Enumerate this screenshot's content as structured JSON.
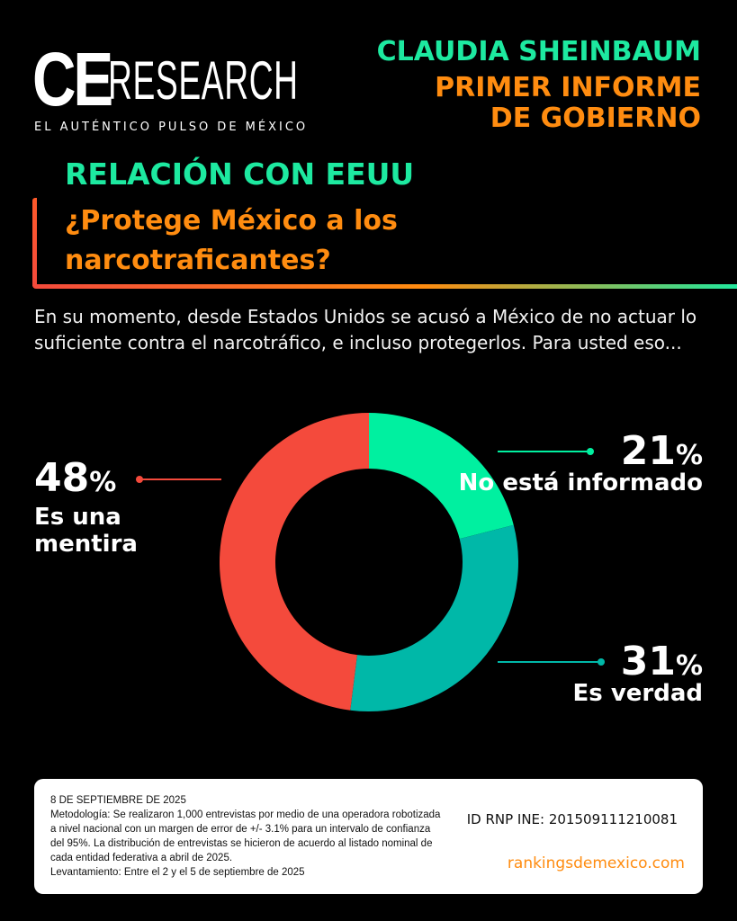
{
  "logo": {
    "ce": "CE",
    "research": "RESEARCH",
    "tagline": "EL AUTÉNTICO PULSO DE MÉXICO"
  },
  "header": {
    "line1": "CLAUDIA SHEINBAUM",
    "line2": "PRIMER INFORME",
    "line3": "DE GOBIERNO"
  },
  "section": "RELACIÓN CON EEUU",
  "question": "¿Protege México a los narcotraficantes?",
  "intro": "En su momento, desde Estados Unidos se acusó a México de no actuar lo suficiente contra el narcotráfico, e incluso protegerlos. Para usted eso...",
  "colors": {
    "green": "#00f0a0",
    "teal": "#00b8a8",
    "red": "#f44a3c",
    "orange": "#ff8c10"
  },
  "chart_data": {
    "type": "pie",
    "donut": true,
    "slices": [
      {
        "label": "No está informado",
        "value": 21,
        "display": "21",
        "color": "#00f0a0"
      },
      {
        "label": "Es verdad",
        "value": 31,
        "display": "31",
        "color": "#00b8a8"
      },
      {
        "label": "Es una mentira",
        "value": 48,
        "display": "48",
        "color": "#f44a3c"
      }
    ],
    "unit": "%"
  },
  "footer": {
    "date": "8 DE SEPTIEMBRE DE 2025",
    "methodology": "Metodología: Se realizaron 1,000 entrevistas por medio de una operadora robotizada a nivel nacional con un margen de error de +/- 3.1% para un intervalo de confianza del 95%. La distribución de entrevistas se hicieron de acuerdo al listado nominal de cada entidad federativa a abril de 2025.",
    "fieldwork": "Levantamiento: Entre el 2 y el 5 de septiembre de 2025",
    "id": "ID RNP INE: 201509111210081",
    "url": "rankingsdemexico.com"
  }
}
